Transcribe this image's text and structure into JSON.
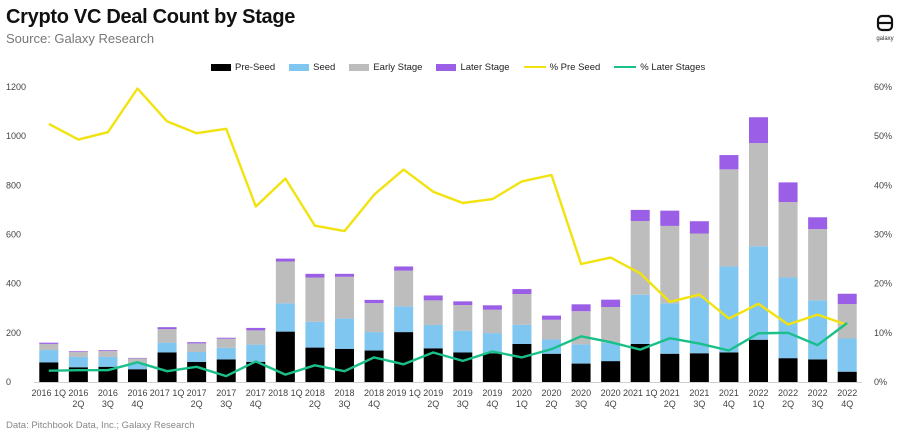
{
  "header": {
    "title": "Crypto VC Deal Count by Stage",
    "subtitle": "Source: Galaxy Research"
  },
  "logo": {
    "word": "galaxy",
    "icon": "galaxy-logo-icon"
  },
  "footer": {
    "source_note": "Data: Pitchbook Data, Inc.; Galaxy Research"
  },
  "colors": {
    "pre_seed": "#000000",
    "seed": "#7fc6f0",
    "early_stage": "#bdbdbd",
    "later_stage": "#9b5ee6",
    "pct_pre_seed": "#f2e20e",
    "pct_later_stages": "#19c08a"
  },
  "chart_data": {
    "type": "bar",
    "stacked": true,
    "legend_position": "top",
    "grid": false,
    "categories": [
      [
        "2016 1Q"
      ],
      [
        "2016",
        "2Q"
      ],
      [
        "2016",
        "3Q"
      ],
      [
        "2016",
        "4Q"
      ],
      [
        "2017 1Q"
      ],
      [
        "2017",
        "2Q"
      ],
      [
        "2017",
        "3Q"
      ],
      [
        "2017",
        "4Q"
      ],
      [
        "2018 1Q"
      ],
      [
        "2018",
        "2Q"
      ],
      [
        "2018",
        "3Q"
      ],
      [
        "2018",
        "4Q"
      ],
      [
        "2019 1Q"
      ],
      [
        "2019",
        "2Q"
      ],
      [
        "2019",
        "3Q"
      ],
      [
        "2019",
        "4Q"
      ],
      [
        "2020",
        "1Q"
      ],
      [
        "2020",
        "2Q"
      ],
      [
        "2020",
        "3Q"
      ],
      [
        "2020",
        "4Q"
      ],
      [
        "2021 1Q"
      ],
      [
        "2021",
        "2Q"
      ],
      [
        "2021",
        "3Q"
      ],
      [
        "2021",
        "4Q"
      ],
      [
        "2022",
        "1Q"
      ],
      [
        "2022",
        "2Q"
      ],
      [
        "2022",
        "3Q"
      ],
      [
        "2022",
        "4Q"
      ]
    ],
    "y_left": {
      "min": 0,
      "max": 1200,
      "ticks": [
        "0",
        "200",
        "400",
        "600",
        "800",
        "1000",
        "1200"
      ]
    },
    "y_right": {
      "min": 0,
      "max": 60,
      "ticks": [
        "0%",
        "10%",
        "20%",
        "30%",
        "40%",
        "50%",
        "60%"
      ]
    },
    "series": [
      {
        "name": "Pre-Seed",
        "kind": "bar",
        "color_key": "pre_seed",
        "values": [
          80,
          60,
          62,
          52,
          120,
          82,
          92,
          82,
          205,
          140,
          135,
          128,
          203,
          137,
          120,
          117,
          155,
          115,
          75,
          85,
          155,
          115,
          117,
          120,
          172,
          97,
          92,
          42
        ]
      },
      {
        "name": "Seed",
        "kind": "bar",
        "color_key": "seed",
        "values": [
          50,
          42,
          40,
          22,
          40,
          40,
          47,
          70,
          115,
          105,
          123,
          75,
          105,
          95,
          88,
          82,
          78,
          58,
          78,
          75,
          200,
          205,
          225,
          350,
          380,
          328,
          240,
          135
        ]
      },
      {
        "name": "Early Stage",
        "kind": "bar",
        "color_key": "early_stage",
        "values": [
          25,
          20,
          25,
          22,
          55,
          35,
          37,
          58,
          170,
          180,
          170,
          118,
          145,
          100,
          105,
          95,
          125,
          80,
          135,
          145,
          300,
          315,
          262,
          395,
          420,
          307,
          290,
          140
        ]
      },
      {
        "name": "Later Stage",
        "kind": "bar",
        "color_key": "later_stage",
        "values": [
          5,
          3,
          3,
          2,
          8,
          5,
          4,
          10,
          12,
          15,
          12,
          13,
          17,
          20,
          15,
          18,
          20,
          17,
          28,
          30,
          45,
          62,
          50,
          58,
          105,
          80,
          48,
          42
        ]
      },
      {
        "name": "% Pre Seed",
        "kind": "line",
        "axis": "right",
        "color_key": "pct_pre_seed",
        "values": [
          52.5,
          49.3,
          50.8,
          59.7,
          53.0,
          50.6,
          51.5,
          35.7,
          41.4,
          31.8,
          30.7,
          38.1,
          43.2,
          38.7,
          36.4,
          37.2,
          40.8,
          42.1,
          24.0,
          25.3,
          22.1,
          16.3,
          17.8,
          12.9,
          15.9,
          11.7,
          13.7,
          11.6
        ]
      },
      {
        "name": "% Later Stages",
        "kind": "line",
        "axis": "right",
        "color_key": "pct_later_stages",
        "values": [
          2.3,
          2.4,
          2.4,
          4.0,
          2.2,
          3.1,
          1.2,
          4.2,
          1.5,
          3.4,
          2.2,
          5.0,
          3.6,
          6.0,
          4.3,
          6.2,
          5.0,
          6.7,
          9.3,
          8.1,
          6.6,
          8.9,
          7.8,
          6.4,
          9.9,
          10.0,
          7.5,
          12.0
        ]
      }
    ]
  }
}
